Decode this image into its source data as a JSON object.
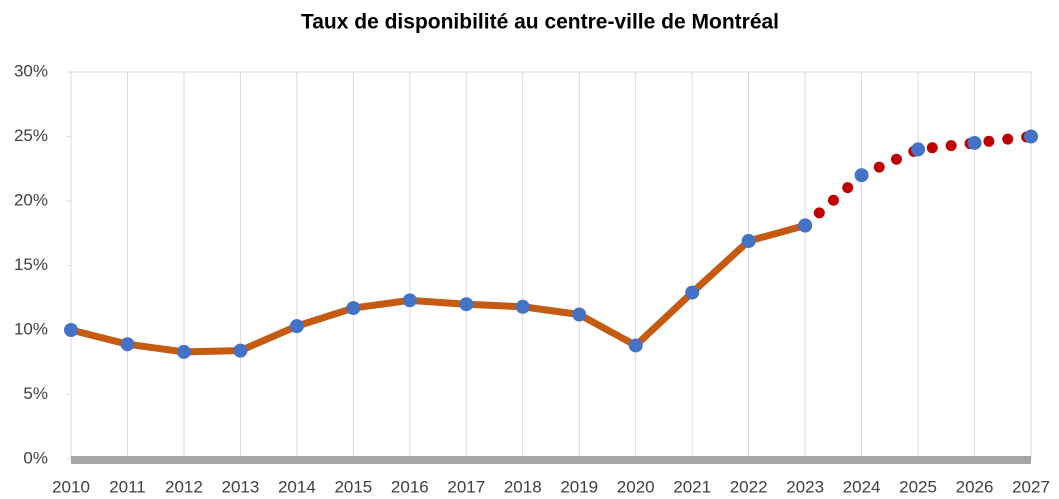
{
  "chart_data": {
    "type": "line",
    "title": "Taux de disponibilité au centre-ville de Montréal",
    "categories": [
      "2010",
      "2011",
      "2012",
      "2013",
      "2014",
      "2015",
      "2016",
      "2017",
      "2018",
      "2019",
      "2020",
      "2021",
      "2022",
      "2023",
      "2024",
      "2025",
      "2026",
      "2027"
    ],
    "series": [
      {
        "color": "#c55a11",
        "style": "solid",
        "values": [
          10.0,
          8.9,
          8.3,
          8.4,
          10.3,
          11.7,
          12.3,
          12.0,
          11.8,
          11.2,
          8.8,
          12.9,
          16.9,
          18.1,
          null,
          null,
          null,
          null
        ]
      },
      {
        "color": "#c00000",
        "style": "dotted",
        "values": [
          null,
          null,
          null,
          null,
          null,
          null,
          null,
          null,
          null,
          null,
          null,
          null,
          null,
          18.1,
          22.0,
          24.0,
          24.5,
          25.0
        ]
      }
    ],
    "marker_color": "#4472c4",
    "ylim": [
      0,
      30
    ],
    "yticks": [
      {
        "value": 0,
        "label": "0%"
      },
      {
        "value": 5,
        "label": "5%"
      },
      {
        "value": 10,
        "label": "10%"
      },
      {
        "value": 15,
        "label": "15%"
      },
      {
        "value": 20,
        "label": "20%"
      },
      {
        "value": 25,
        "label": "25%"
      },
      {
        "value": 30,
        "label": "30%"
      }
    ],
    "grid": true
  }
}
